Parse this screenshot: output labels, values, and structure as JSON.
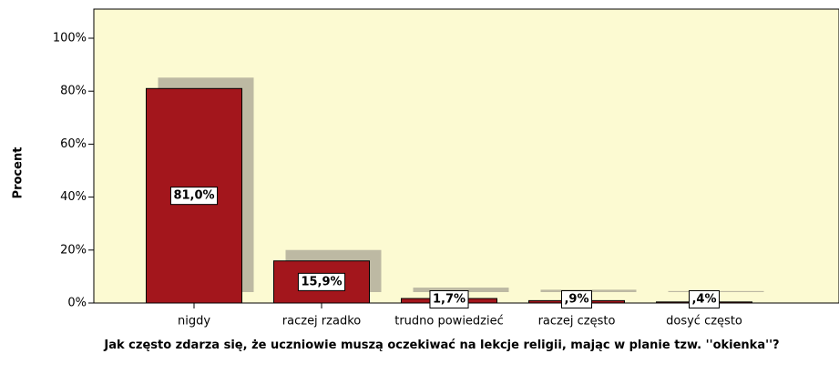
{
  "chart_data": {
    "type": "bar",
    "y_label": "Procent",
    "x_label": "Jak często zdarza się, że uczniowie muszą oczekiwać na lekcje religii, mając w planie tzw. ''okienka''?",
    "categories": [
      "nigdy",
      "raczej rzadko",
      "trudno powiedzieć",
      "raczej często",
      "dosyć często"
    ],
    "values": [
      81.0,
      15.9,
      1.7,
      0.9,
      0.4
    ],
    "value_labels": [
      "81,0%",
      "15,9%",
      "1,7%",
      ",9%",
      ",4%"
    ],
    "color": "#a3161c",
    "ylim": [
      0,
      111
    ],
    "yticks": [
      {
        "value": 0,
        "label": "0%"
      },
      {
        "value": 20,
        "label": "20%"
      },
      {
        "value": 40,
        "label": "40%"
      },
      {
        "value": 60,
        "label": "60%"
      },
      {
        "value": 80,
        "label": "80%"
      },
      {
        "value": 100,
        "label": "100%"
      }
    ]
  }
}
